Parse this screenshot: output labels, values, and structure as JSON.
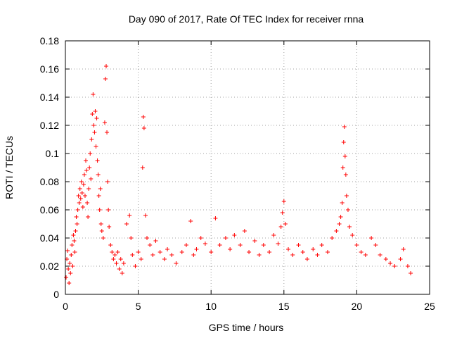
{
  "chart_data": {
    "type": "scatter",
    "title": "Day 090 of 2017, Rate Of TEC Index for receiver rnna",
    "xlabel": "GPS time / hours",
    "ylabel": "ROTI / TECUs",
    "xlim": [
      0,
      25
    ],
    "ylim": [
      0,
      0.18
    ],
    "x_ticks": [
      0,
      5,
      10,
      15,
      20,
      25
    ],
    "y_ticks": [
      0,
      0.02,
      0.04,
      0.06,
      0.08,
      0.1,
      0.12,
      0.14,
      0.16,
      0.18
    ],
    "x_tick_labels": [
      "0",
      "5",
      "10",
      "15",
      "20",
      "25"
    ],
    "y_tick_labels": [
      "0",
      "0.02",
      "0.04",
      "0.06",
      "0.08",
      "0.1",
      "0.12",
      "0.14",
      "0.16",
      "0.18"
    ],
    "grid": true,
    "marker": "plus",
    "color": "#ff0000",
    "points": [
      [
        0.05,
        0.012
      ],
      [
        0.1,
        0.025
      ],
      [
        0.15,
        0.031
      ],
      [
        0.2,
        0.018
      ],
      [
        0.25,
        0.008
      ],
      [
        0.3,
        0.022
      ],
      [
        0.35,
        0.015
      ],
      [
        0.4,
        0.028
      ],
      [
        0.45,
        0.035
      ],
      [
        0.5,
        0.02
      ],
      [
        0.55,
        0.042
      ],
      [
        0.6,
        0.038
      ],
      [
        0.65,
        0.03
      ],
      [
        0.7,
        0.045
      ],
      [
        0.75,
        0.055
      ],
      [
        0.8,
        0.05
      ],
      [
        0.85,
        0.06
      ],
      [
        0.9,
        0.07
      ],
      [
        0.95,
        0.065
      ],
      [
        1.0,
        0.075
      ],
      [
        1.05,
        0.068
      ],
      [
        1.1,
        0.08
      ],
      [
        1.15,
        0.072
      ],
      [
        1.2,
        0.062
      ],
      [
        1.25,
        0.078
      ],
      [
        1.3,
        0.085
      ],
      [
        1.35,
        0.07
      ],
      [
        1.4,
        0.095
      ],
      [
        1.45,
        0.088
      ],
      [
        1.5,
        0.065
      ],
      [
        1.55,
        0.055
      ],
      [
        1.6,
        0.075
      ],
      [
        1.65,
        0.09
      ],
      [
        1.7,
        0.1
      ],
      [
        1.75,
        0.082
      ],
      [
        1.8,
        0.11
      ],
      [
        1.85,
        0.128
      ],
      [
        1.9,
        0.142
      ],
      [
        1.95,
        0.12
      ],
      [
        2.0,
        0.115
      ],
      [
        2.05,
        0.13
      ],
      [
        2.1,
        0.105
      ],
      [
        2.15,
        0.125
      ],
      [
        2.2,
        0.095
      ],
      [
        2.25,
        0.085
      ],
      [
        2.3,
        0.07
      ],
      [
        2.35,
        0.06
      ],
      [
        2.4,
        0.075
      ],
      [
        2.45,
        0.05
      ],
      [
        2.5,
        0.045
      ],
      [
        2.6,
        0.04
      ],
      [
        2.7,
        0.122
      ],
      [
        2.75,
        0.153
      ],
      [
        2.8,
        0.162
      ],
      [
        2.85,
        0.115
      ],
      [
        2.9,
        0.08
      ],
      [
        2.95,
        0.06
      ],
      [
        3.0,
        0.048
      ],
      [
        3.1,
        0.035
      ],
      [
        3.2,
        0.03
      ],
      [
        3.3,
        0.025
      ],
      [
        3.4,
        0.028
      ],
      [
        3.5,
        0.022
      ],
      [
        3.6,
        0.03
      ],
      [
        3.7,
        0.018
      ],
      [
        3.8,
        0.025
      ],
      [
        3.9,
        0.015
      ],
      [
        4.0,
        0.022
      ],
      [
        4.2,
        0.05
      ],
      [
        4.4,
        0.056
      ],
      [
        4.5,
        0.04
      ],
      [
        4.6,
        0.028
      ],
      [
        4.8,
        0.02
      ],
      [
        5.0,
        0.03
      ],
      [
        5.2,
        0.025
      ],
      [
        5.3,
        0.09
      ],
      [
        5.35,
        0.126
      ],
      [
        5.4,
        0.118
      ],
      [
        5.5,
        0.056
      ],
      [
        5.6,
        0.04
      ],
      [
        5.8,
        0.035
      ],
      [
        6.0,
        0.028
      ],
      [
        6.2,
        0.038
      ],
      [
        6.5,
        0.03
      ],
      [
        6.8,
        0.025
      ],
      [
        7.0,
        0.032
      ],
      [
        7.3,
        0.028
      ],
      [
        7.6,
        0.022
      ],
      [
        8.0,
        0.03
      ],
      [
        8.3,
        0.035
      ],
      [
        8.6,
        0.052
      ],
      [
        8.8,
        0.028
      ],
      [
        9.0,
        0.032
      ],
      [
        9.3,
        0.04
      ],
      [
        9.6,
        0.036
      ],
      [
        10.0,
        0.03
      ],
      [
        10.3,
        0.054
      ],
      [
        10.6,
        0.035
      ],
      [
        11.0,
        0.04
      ],
      [
        11.3,
        0.032
      ],
      [
        11.6,
        0.042
      ],
      [
        12.0,
        0.035
      ],
      [
        12.3,
        0.045
      ],
      [
        12.6,
        0.03
      ],
      [
        13.0,
        0.038
      ],
      [
        13.3,
        0.028
      ],
      [
        13.6,
        0.035
      ],
      [
        14.0,
        0.03
      ],
      [
        14.3,
        0.042
      ],
      [
        14.6,
        0.036
      ],
      [
        14.8,
        0.048
      ],
      [
        14.9,
        0.058
      ],
      [
        15.0,
        0.066
      ],
      [
        15.1,
        0.05
      ],
      [
        15.3,
        0.032
      ],
      [
        15.6,
        0.028
      ],
      [
        16.0,
        0.035
      ],
      [
        16.3,
        0.03
      ],
      [
        16.6,
        0.025
      ],
      [
        17.0,
        0.032
      ],
      [
        17.3,
        0.028
      ],
      [
        17.6,
        0.035
      ],
      [
        18.0,
        0.03
      ],
      [
        18.3,
        0.04
      ],
      [
        18.6,
        0.045
      ],
      [
        18.8,
        0.05
      ],
      [
        18.9,
        0.055
      ],
      [
        19.0,
        0.065
      ],
      [
        19.05,
        0.09
      ],
      [
        19.1,
        0.108
      ],
      [
        19.15,
        0.119
      ],
      [
        19.2,
        0.098
      ],
      [
        19.25,
        0.085
      ],
      [
        19.3,
        0.07
      ],
      [
        19.4,
        0.06
      ],
      [
        19.5,
        0.048
      ],
      [
        19.7,
        0.042
      ],
      [
        20.0,
        0.035
      ],
      [
        20.3,
        0.03
      ],
      [
        20.6,
        0.028
      ],
      [
        21.0,
        0.04
      ],
      [
        21.3,
        0.035
      ],
      [
        21.6,
        0.028
      ],
      [
        22.0,
        0.025
      ],
      [
        22.3,
        0.022
      ],
      [
        22.6,
        0.02
      ],
      [
        23.0,
        0.025
      ],
      [
        23.2,
        0.032
      ],
      [
        23.5,
        0.02
      ],
      [
        23.7,
        0.015
      ]
    ]
  }
}
